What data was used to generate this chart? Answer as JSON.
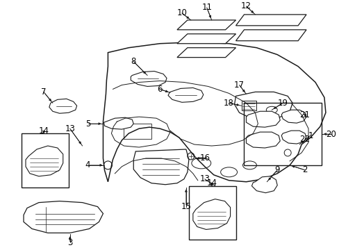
{
  "background_color": "#ffffff",
  "fig_width": 4.89,
  "fig_height": 3.6,
  "dpi": 100,
  "line_color": "#1a1a1a",
  "text_color": "#000000",
  "font_size": 8.5,
  "font_size_small": 7.5
}
